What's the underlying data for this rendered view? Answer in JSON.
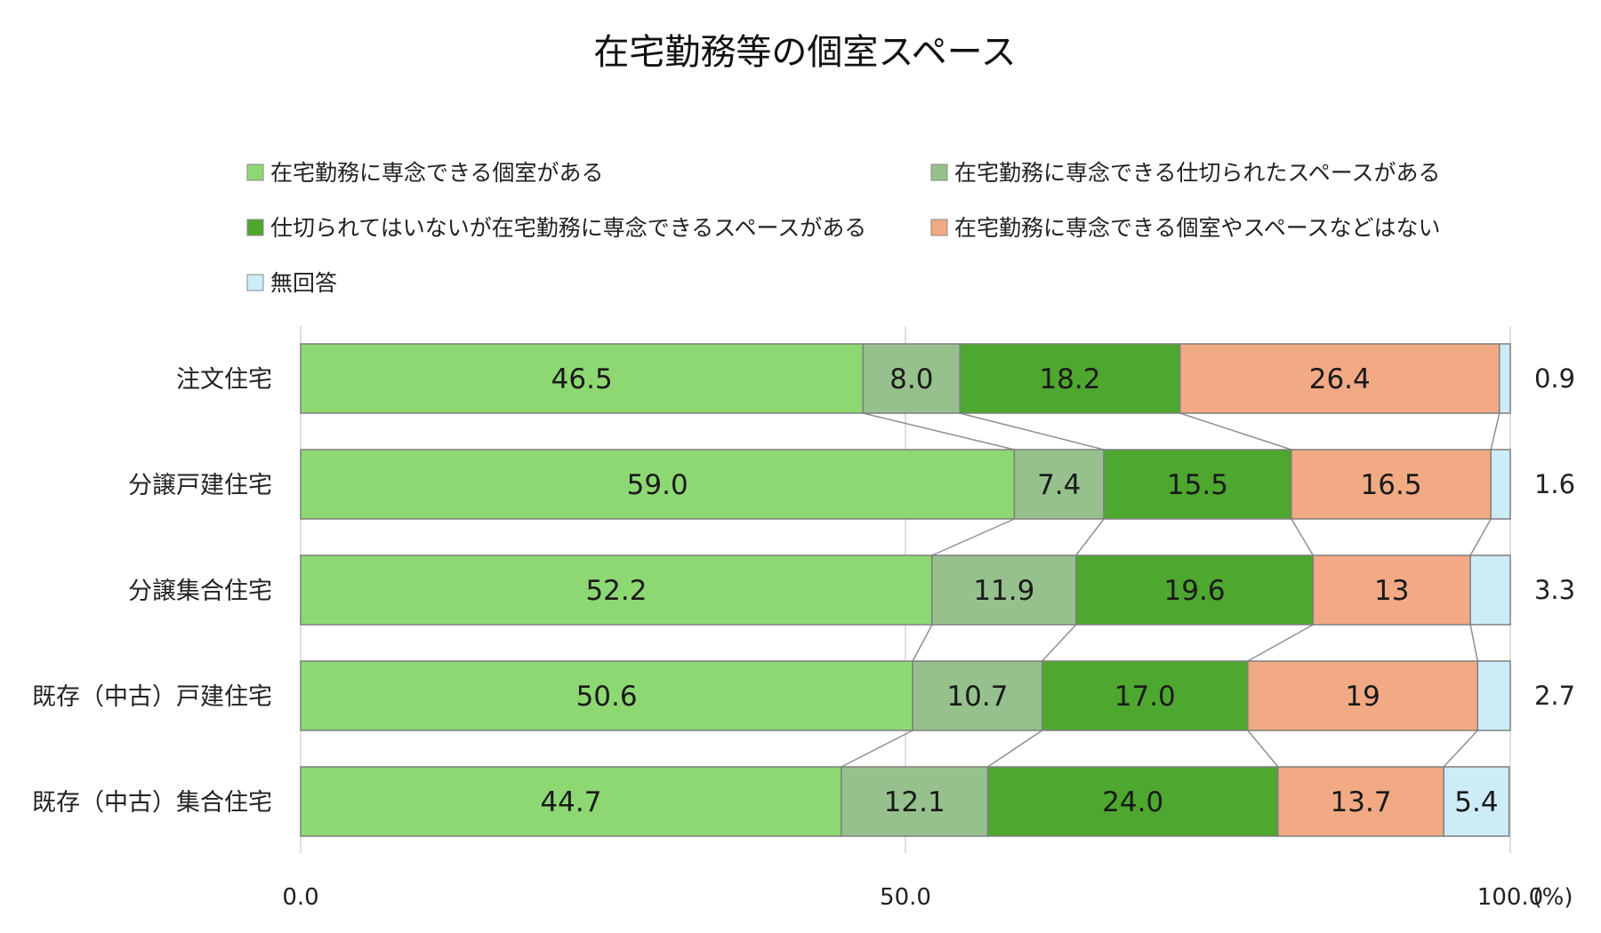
{
  "chart_data": {
    "type": "bar",
    "orientation": "horizontal",
    "stacked": true,
    "title": "在宅勤務等の個室スペース",
    "categories": [
      "注文住宅",
      "分譲戸建住宅",
      "分譲集合住宅",
      "既存（中古）戸建住宅",
      "既存（中古）集合住宅"
    ],
    "series": [
      {
        "name": "在宅勤務に専念できる個室がある",
        "color": "#8ED873",
        "values": [
          46.5,
          59.0,
          52.2,
          50.6,
          44.7
        ],
        "labels": [
          "46.5",
          "59.0",
          "52.2",
          "50.6",
          "44.7"
        ]
      },
      {
        "name": "在宅勤務に専念できる仕切られたスペースがある",
        "color": "#97C18C",
        "values": [
          8.0,
          7.4,
          11.9,
          10.7,
          12.1
        ],
        "labels": [
          "8.0",
          "7.4",
          "11.9",
          "10.7",
          "12.1"
        ]
      },
      {
        "name": "仕切られてはいないが在宅勤務に専念できるスペースがある",
        "color": "#4EA72E",
        "values": [
          18.2,
          15.5,
          19.6,
          17.0,
          24.0
        ],
        "labels": [
          "18.2",
          "15.5",
          "19.6",
          "17.0",
          "24.0"
        ]
      },
      {
        "name": "在宅勤務に専念できる個室やスペースなどはない",
        "color": "#F2AA84",
        "values": [
          26.4,
          16.5,
          13,
          19,
          13.7
        ],
        "labels": [
          "26.4",
          "16.5",
          "13",
          "19",
          "13.7"
        ]
      },
      {
        "name": "無回答",
        "color": "#CCECF8",
        "values": [
          0.9,
          1.6,
          3.3,
          2.7,
          5.4
        ],
        "labels": [
          "0.9",
          "1.6",
          "3.3",
          "2.7",
          "5.4"
        ]
      }
    ],
    "xlim": [
      0,
      100
    ],
    "xticks": [
      0,
      50,
      100
    ],
    "xtick_labels": [
      "0.0",
      "50.0",
      "100.0"
    ],
    "x_unit": "(%)",
    "legend_position": "top",
    "grid": true,
    "series_connector_lines": true
  }
}
